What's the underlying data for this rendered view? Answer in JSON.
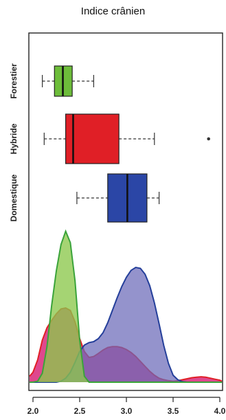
{
  "title": "Indice crânien",
  "colors": {
    "forestier": "#3aa33a",
    "hybride": "#e01f26",
    "domestique": "#243f9a",
    "forestier_fill": "#6dbd3a",
    "density_forestier": "#8cc84b",
    "density_hybride": "#d9287a",
    "density_domestique": "#6b6ab8"
  },
  "chart_data": [
    {
      "type": "box",
      "orientation": "horizontal",
      "groups": [
        {
          "name": "Forestier",
          "min": 2.1,
          "q1": 2.23,
          "median": 2.32,
          "q3": 2.42,
          "max": 2.65,
          "outliers": [],
          "color": "#6dbd3a"
        },
        {
          "name": "Hybride",
          "min": 2.12,
          "q1": 2.35,
          "median": 2.43,
          "q3": 2.92,
          "max": 3.3,
          "outliers": [
            3.88
          ],
          "color": "#e01f26"
        },
        {
          "name": "Domestique",
          "min": 2.47,
          "q1": 2.8,
          "median": 3.01,
          "q3": 3.22,
          "max": 3.35,
          "outliers": [],
          "color": "#2b46a6"
        }
      ],
      "xlim": [
        1.95,
        4.05
      ]
    },
    {
      "type": "area",
      "x": [
        1.95,
        2.0,
        2.05,
        2.1,
        2.15,
        2.2,
        2.25,
        2.3,
        2.35,
        2.4,
        2.45,
        2.5,
        2.55,
        2.6,
        2.65,
        2.7,
        2.75,
        2.8,
        2.85,
        2.9,
        2.95,
        3.0,
        3.05,
        3.1,
        3.15,
        3.2,
        3.25,
        3.3,
        3.35,
        3.4,
        3.45,
        3.5,
        3.55,
        3.6,
        3.65,
        3.7,
        3.75,
        3.8,
        3.85,
        3.9,
        3.95,
        4.0,
        4.05
      ],
      "series": [
        {
          "name": "Forestier",
          "values": [
            0.0,
            0.0,
            0.02,
            0.18,
            0.72,
            1.55,
            2.25,
            2.78,
            3.05,
            2.82,
            2.05,
            0.85,
            0.12,
            0.0,
            0.0,
            0.0,
            0.0,
            0.0,
            0.0,
            0.0,
            0.0,
            0.0,
            0.0,
            0.0,
            0.0,
            0.0,
            0.0,
            0.0,
            0.0,
            0.0,
            0.0,
            0.0,
            0.0,
            0.0,
            0.0,
            0.0,
            0.0,
            0.0,
            0.0,
            0.0,
            0.0,
            0.0,
            0.0
          ]
        },
        {
          "name": "Hybride",
          "values": [
            0.12,
            0.2,
            0.45,
            0.85,
            1.1,
            1.25,
            1.38,
            1.48,
            1.5,
            1.45,
            1.22,
            0.88,
            0.62,
            0.5,
            0.52,
            0.58,
            0.65,
            0.7,
            0.72,
            0.72,
            0.7,
            0.66,
            0.6,
            0.52,
            0.42,
            0.32,
            0.22,
            0.14,
            0.08,
            0.05,
            0.03,
            0.02,
            0.03,
            0.05,
            0.07,
            0.09,
            0.1,
            0.11,
            0.1,
            0.08,
            0.06,
            0.04,
            0.02
          ]
        },
        {
          "name": "Domestique",
          "values": [
            0.0,
            0.0,
            0.0,
            0.0,
            0.0,
            0.0,
            0.0,
            0.02,
            0.08,
            0.2,
            0.4,
            0.62,
            0.75,
            0.8,
            0.82,
            0.88,
            1.0,
            1.2,
            1.45,
            1.7,
            1.93,
            2.12,
            2.26,
            2.32,
            2.3,
            2.18,
            1.95,
            1.6,
            1.18,
            0.74,
            0.38,
            0.14,
            0.05,
            0.01,
            0.0,
            0.0,
            0.0,
            0.0,
            0.0,
            0.0,
            0.0,
            0.0,
            0.0
          ]
        }
      ],
      "xticks": [
        "2.0",
        "2.5",
        "3.0",
        "3.5",
        "4.0"
      ],
      "xlim": [
        1.95,
        4.05
      ]
    }
  ]
}
